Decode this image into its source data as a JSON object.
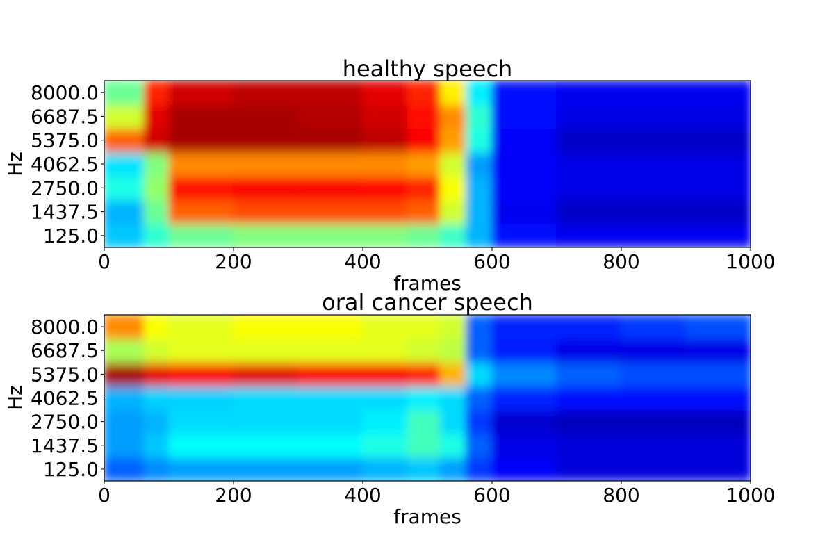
{
  "chart_data": [
    {
      "type": "heatmap",
      "title": "healthy speech",
      "xlabel": "frames",
      "ylabel": "Hz",
      "xlim": [
        0,
        1000
      ],
      "ylim": [
        125.0,
        8000.0
      ],
      "xticks": [
        "0",
        "200",
        "400",
        "600",
        "800",
        "1000"
      ],
      "yticks": [
        "125.0",
        "1437.5",
        "2750.0",
        "4062.5",
        "5375.0",
        "6687.5",
        "8000.0"
      ],
      "colormap": "jet",
      "grid": false,
      "x": [
        0,
        62,
        100,
        200,
        300,
        400,
        470,
        520,
        560,
        600,
        700,
        800,
        900,
        1000
      ],
      "y": [
        125.0,
        1437.5,
        2750.0,
        4062.5,
        5375.0,
        6687.5,
        8000.0
      ],
      "z": [
        [
          0.32,
          0.42,
          0.48,
          0.5,
          0.5,
          0.5,
          0.48,
          0.43,
          0.3,
          0.14,
          0.11,
          0.11,
          0.11,
          0.11
        ],
        [
          0.3,
          0.48,
          0.78,
          0.8,
          0.8,
          0.8,
          0.78,
          0.58,
          0.3,
          0.11,
          0.07,
          0.07,
          0.07,
          0.07
        ],
        [
          0.4,
          0.52,
          0.86,
          0.88,
          0.88,
          0.87,
          0.84,
          0.62,
          0.3,
          0.12,
          0.1,
          0.1,
          0.1,
          0.1
        ],
        [
          0.35,
          0.5,
          0.74,
          0.74,
          0.74,
          0.74,
          0.72,
          0.58,
          0.28,
          0.12,
          0.1,
          0.1,
          0.1,
          0.1
        ],
        [
          0.78,
          0.92,
          0.96,
          0.96,
          0.96,
          0.94,
          0.88,
          0.72,
          0.4,
          0.12,
          0.07,
          0.07,
          0.07,
          0.07
        ],
        [
          0.58,
          0.9,
          0.96,
          0.96,
          0.95,
          0.92,
          0.86,
          0.74,
          0.42,
          0.14,
          0.1,
          0.1,
          0.1,
          0.1
        ],
        [
          0.48,
          0.84,
          0.92,
          0.94,
          0.94,
          0.9,
          0.84,
          0.64,
          0.36,
          0.14,
          0.11,
          0.11,
          0.11,
          0.11
        ]
      ]
    },
    {
      "type": "heatmap",
      "title": "oral cancer speech",
      "xlabel": "frames",
      "ylabel": "Hz",
      "xlim": [
        0,
        1000
      ],
      "ylim": [
        125.0,
        8000.0
      ],
      "xticks": [
        "0",
        "200",
        "400",
        "600",
        "800",
        "1000"
      ],
      "yticks": [
        "125.0",
        "1437.5",
        "2750.0",
        "4062.5",
        "5375.0",
        "6687.5",
        "8000.0"
      ],
      "colormap": "jet",
      "grid": false,
      "x": [
        0,
        62,
        100,
        200,
        300,
        400,
        470,
        520,
        560,
        600,
        700,
        800,
        900,
        1000
      ],
      "y": [
        125.0,
        1437.5,
        2750.0,
        4062.5,
        5375.0,
        6687.5,
        8000.0
      ],
      "z": [
        [
          0.22,
          0.26,
          0.28,
          0.28,
          0.28,
          0.3,
          0.32,
          0.28,
          0.18,
          0.12,
          0.09,
          0.09,
          0.09,
          0.09
        ],
        [
          0.28,
          0.32,
          0.38,
          0.38,
          0.38,
          0.4,
          0.44,
          0.4,
          0.22,
          0.1,
          0.09,
          0.09,
          0.09,
          0.09
        ],
        [
          0.28,
          0.3,
          0.34,
          0.34,
          0.34,
          0.36,
          0.44,
          0.34,
          0.18,
          0.08,
          0.06,
          0.06,
          0.06,
          0.06
        ],
        [
          0.3,
          0.33,
          0.33,
          0.34,
          0.34,
          0.34,
          0.36,
          0.34,
          0.22,
          0.16,
          0.14,
          0.14,
          0.14,
          0.14
        ],
        [
          0.96,
          0.9,
          0.88,
          0.9,
          0.88,
          0.88,
          0.84,
          0.7,
          0.34,
          0.26,
          0.22,
          0.2,
          0.2,
          0.18
        ],
        [
          0.54,
          0.58,
          0.6,
          0.6,
          0.6,
          0.6,
          0.58,
          0.56,
          0.22,
          0.15,
          0.1,
          0.1,
          0.1,
          0.1
        ],
        [
          0.74,
          0.62,
          0.6,
          0.62,
          0.62,
          0.6,
          0.6,
          0.58,
          0.22,
          0.16,
          0.16,
          0.18,
          0.2,
          0.22
        ]
      ]
    }
  ]
}
